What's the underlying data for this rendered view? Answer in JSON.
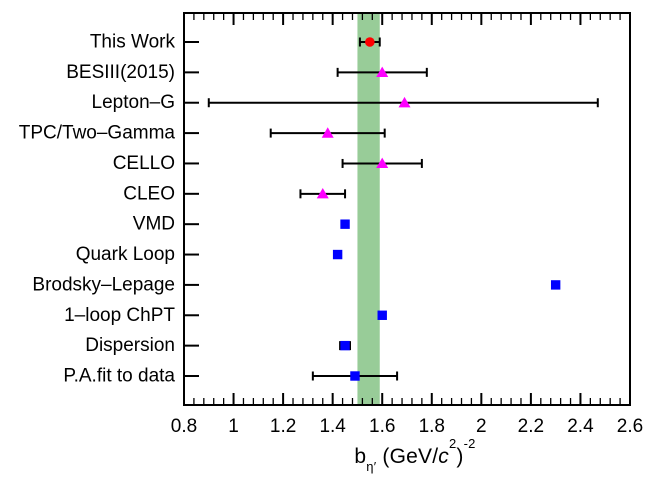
{
  "figure": {
    "background": "#FFFFFF"
  },
  "xaxis_title": {
    "plain": "b_η′ (GeV/c²)⁻²",
    "base": "b",
    "subscript": "η′",
    "mid": " (GeV/",
    "c_italic": "c",
    "c_power": "2",
    "close": ")",
    "outer_power": "-2"
  },
  "chart_data": {
    "type": "scatter",
    "title": "",
    "xlabel": "b_η′ (GeV/c²)⁻²",
    "ylabel": "",
    "xlim": [
      0.8,
      2.6
    ],
    "x_tick_values": [
      0.8,
      1,
      1.2,
      1.4,
      1.6,
      1.8,
      2,
      2.2,
      2.4,
      2.6
    ],
    "x_tick_labels": [
      "0.8",
      "1",
      "1.2",
      "1.4",
      "1.6",
      "1.8",
      "2",
      "2.2",
      "2.4",
      "2.6"
    ],
    "x_minor_tick_step": 0.04,
    "grid": false,
    "legend": false,
    "band": {
      "from": 1.5,
      "to": 1.59,
      "color": "#98CC98"
    },
    "marker_colors": {
      "circle": "#FF0000",
      "triangle": "#FF00FF",
      "square": "#0000FF"
    },
    "rows": [
      {
        "label": "This Work",
        "value": 1.55,
        "low": 1.51,
        "high": 1.59,
        "marker": "circle",
        "color": "#FF0000"
      },
      {
        "label": "BESIII(2015)",
        "value": 1.6,
        "low": 1.42,
        "high": 1.78,
        "marker": "triangle",
        "color": "#FF00FF"
      },
      {
        "label": "Lepton–G",
        "value": 1.69,
        "low": 0.9,
        "high": 2.47,
        "marker": "triangle",
        "color": "#FF00FF"
      },
      {
        "label": "TPC/Two–Gamma",
        "value": 1.38,
        "low": 1.15,
        "high": 1.61,
        "marker": "triangle",
        "color": "#FF00FF"
      },
      {
        "label": "CELLO",
        "value": 1.6,
        "low": 1.44,
        "high": 1.76,
        "marker": "triangle",
        "color": "#FF00FF"
      },
      {
        "label": "CLEO",
        "value": 1.36,
        "low": 1.27,
        "high": 1.45,
        "marker": "triangle",
        "color": "#FF00FF"
      },
      {
        "label": "VMD",
        "value": 1.45,
        "marker": "square",
        "color": "#0000FF"
      },
      {
        "label": "Quark Loop",
        "value": 1.42,
        "marker": "square",
        "color": "#0000FF"
      },
      {
        "label": "Brodsky–Lepage",
        "value": 2.3,
        "marker": "square",
        "color": "#0000FF"
      },
      {
        "label": "1–loop ChPT",
        "value": 1.6,
        "marker": "square",
        "color": "#0000FF"
      },
      {
        "label": "Dispersion",
        "value": 1.45,
        "low": 1.43,
        "high": 1.47,
        "marker": "square",
        "color": "#0000FF"
      },
      {
        "label": "P.A.fit to data",
        "value": 1.49,
        "low": 1.32,
        "high": 1.66,
        "marker": "square",
        "color": "#0000FF"
      }
    ]
  }
}
